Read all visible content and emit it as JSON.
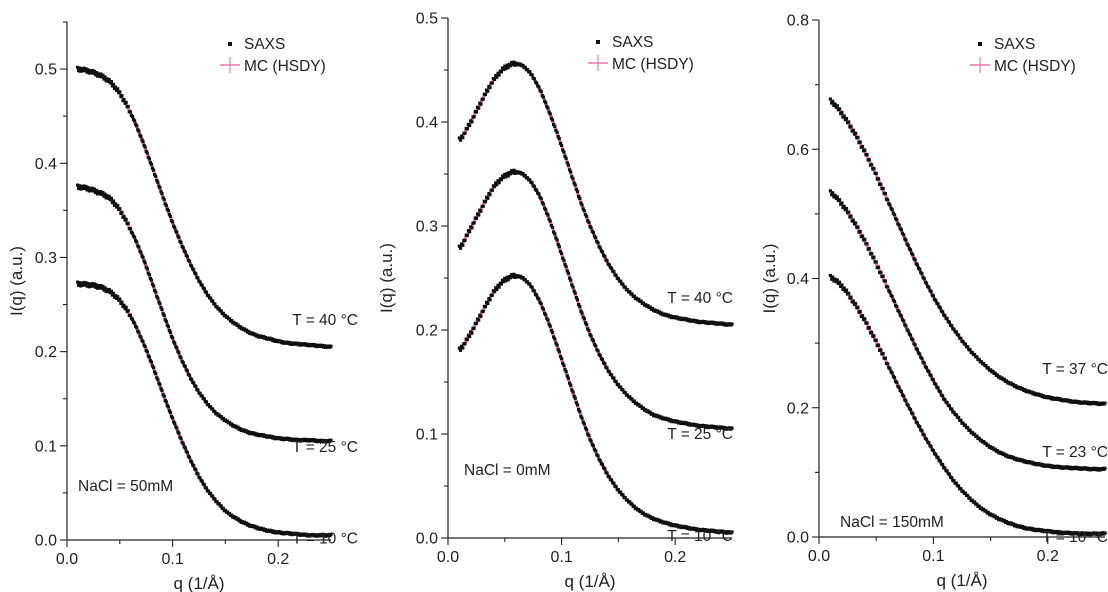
{
  "colors": {
    "saxs": "#111111",
    "mc": "#e37ab0"
  },
  "chart_data": [
    {
      "type": "line",
      "xlabel": "q (1/Å)",
      "ylabel": "I(q) (a.u.)",
      "xlim": [
        0.0,
        0.25
      ],
      "ylim": [
        0.0,
        0.55
      ],
      "xticks": [
        "0.0",
        "0.1",
        "0.2"
      ],
      "yticks": [
        "0.0",
        "0.1",
        "0.2",
        "0.3",
        "0.4",
        "0.5"
      ],
      "legend": [
        "SAXS",
        "MC (HSDY)"
      ],
      "legend_position": "top-right",
      "condition": "NaCl = 50mM",
      "curve_labels": [
        "T = 40 °C",
        "T = 25 °C",
        "T = 10 °C"
      ],
      "x": [
        0.01,
        0.02,
        0.03,
        0.04,
        0.05,
        0.06,
        0.07,
        0.08,
        0.09,
        0.1,
        0.11,
        0.12,
        0.13,
        0.14,
        0.15,
        0.16,
        0.17,
        0.18,
        0.19,
        0.2,
        0.21,
        0.22,
        0.23,
        0.24,
        0.25
      ],
      "series": [
        {
          "values": [
            0.5,
            0.498,
            0.494,
            0.487,
            0.474,
            0.454,
            0.428,
            0.398,
            0.367,
            0.337,
            0.31,
            0.286,
            0.266,
            0.25,
            0.238,
            0.229,
            0.222,
            0.217,
            0.214,
            0.211,
            0.209,
            0.208,
            0.207,
            0.206,
            0.205
          ]
        },
        {
          "values": [
            0.375,
            0.373,
            0.369,
            0.363,
            0.35,
            0.33,
            0.305,
            0.275,
            0.244,
            0.214,
            0.188,
            0.166,
            0.149,
            0.136,
            0.127,
            0.12,
            0.115,
            0.112,
            0.11,
            0.108,
            0.107,
            0.106,
            0.106,
            0.105,
            0.105
          ]
        },
        {
          "values": [
            0.272,
            0.271,
            0.269,
            0.264,
            0.254,
            0.238,
            0.215,
            0.188,
            0.158,
            0.129,
            0.102,
            0.078,
            0.058,
            0.043,
            0.031,
            0.023,
            0.017,
            0.013,
            0.01,
            0.008,
            0.007,
            0.006,
            0.005,
            0.005,
            0.005
          ]
        }
      ]
    },
    {
      "type": "line",
      "xlabel": "q (1/Å)",
      "ylabel": "I(q) (a.u.)",
      "xlim": [
        0.0,
        0.25
      ],
      "ylim": [
        0.0,
        0.5
      ],
      "xticks": [
        "0.0",
        "0.1",
        "0.2"
      ],
      "yticks": [
        "0.0",
        "0.1",
        "0.2",
        "0.3",
        "0.4",
        "0.5"
      ],
      "legend": [
        "SAXS",
        "MC (HSDY)"
      ],
      "legend_position": "top-right",
      "condition": "NaCl = 0mM",
      "curve_labels": [
        "T = 40 °C",
        "T = 25 °C",
        "T = 10 °C"
      ],
      "x": [
        0.01,
        0.02,
        0.03,
        0.04,
        0.05,
        0.06,
        0.07,
        0.08,
        0.09,
        0.1,
        0.11,
        0.12,
        0.13,
        0.14,
        0.15,
        0.16,
        0.17,
        0.18,
        0.19,
        0.2,
        0.21,
        0.22,
        0.23,
        0.24,
        0.25
      ],
      "series": [
        {
          "values": [
            0.383,
            0.4,
            0.421,
            0.44,
            0.452,
            0.456,
            0.45,
            0.433,
            0.407,
            0.377,
            0.345,
            0.314,
            0.288,
            0.266,
            0.249,
            0.236,
            0.227,
            0.22,
            0.215,
            0.212,
            0.21,
            0.208,
            0.207,
            0.206,
            0.205
          ]
        },
        {
          "values": [
            0.279,
            0.298,
            0.318,
            0.337,
            0.348,
            0.352,
            0.346,
            0.33,
            0.304,
            0.273,
            0.241,
            0.21,
            0.184,
            0.163,
            0.147,
            0.135,
            0.126,
            0.119,
            0.115,
            0.112,
            0.11,
            0.108,
            0.107,
            0.106,
            0.105
          ]
        },
        {
          "values": [
            0.181,
            0.197,
            0.217,
            0.236,
            0.248,
            0.252,
            0.246,
            0.229,
            0.203,
            0.172,
            0.14,
            0.109,
            0.083,
            0.062,
            0.046,
            0.034,
            0.025,
            0.019,
            0.015,
            0.012,
            0.01,
            0.008,
            0.007,
            0.006,
            0.005
          ]
        }
      ]
    },
    {
      "type": "line",
      "xlabel": "q (1/Å)",
      "ylabel": "I(q) (a.u.)",
      "xlim": [
        0.0,
        0.25
      ],
      "ylim": [
        0.0,
        0.8
      ],
      "xticks": [
        "0.0",
        "0.1",
        "0.2"
      ],
      "yticks": [
        "0.0",
        "0.2",
        "0.4",
        "0.6",
        "0.8"
      ],
      "legend": [
        "SAXS",
        "MC (HSDY)"
      ],
      "legend_position": "top-right",
      "condition": "NaCl = 150mM",
      "curve_labels": [
        "T = 37 °C",
        "T = 23 °C",
        "T = 10 °C"
      ],
      "x": [
        0.01,
        0.02,
        0.03,
        0.04,
        0.05,
        0.06,
        0.07,
        0.08,
        0.09,
        0.1,
        0.11,
        0.12,
        0.13,
        0.14,
        0.15,
        0.16,
        0.17,
        0.18,
        0.19,
        0.2,
        0.21,
        0.22,
        0.23,
        0.24,
        0.25
      ],
      "series": [
        {
          "values": [
            0.675,
            0.655,
            0.628,
            0.596,
            0.56,
            0.521,
            0.482,
            0.443,
            0.406,
            0.372,
            0.342,
            0.316,
            0.293,
            0.274,
            0.258,
            0.245,
            0.235,
            0.227,
            0.221,
            0.216,
            0.213,
            0.21,
            0.208,
            0.207,
            0.206
          ]
        },
        {
          "values": [
            0.533,
            0.515,
            0.489,
            0.458,
            0.423,
            0.386,
            0.348,
            0.311,
            0.275,
            0.242,
            0.212,
            0.188,
            0.168,
            0.152,
            0.139,
            0.129,
            0.122,
            0.117,
            0.113,
            0.11,
            0.108,
            0.107,
            0.106,
            0.105,
            0.105
          ]
        },
        {
          "values": [
            0.402,
            0.388,
            0.364,
            0.335,
            0.302,
            0.267,
            0.231,
            0.196,
            0.163,
            0.133,
            0.106,
            0.082,
            0.063,
            0.047,
            0.035,
            0.026,
            0.019,
            0.014,
            0.011,
            0.009,
            0.007,
            0.006,
            0.005,
            0.005,
            0.005
          ]
        }
      ]
    }
  ]
}
